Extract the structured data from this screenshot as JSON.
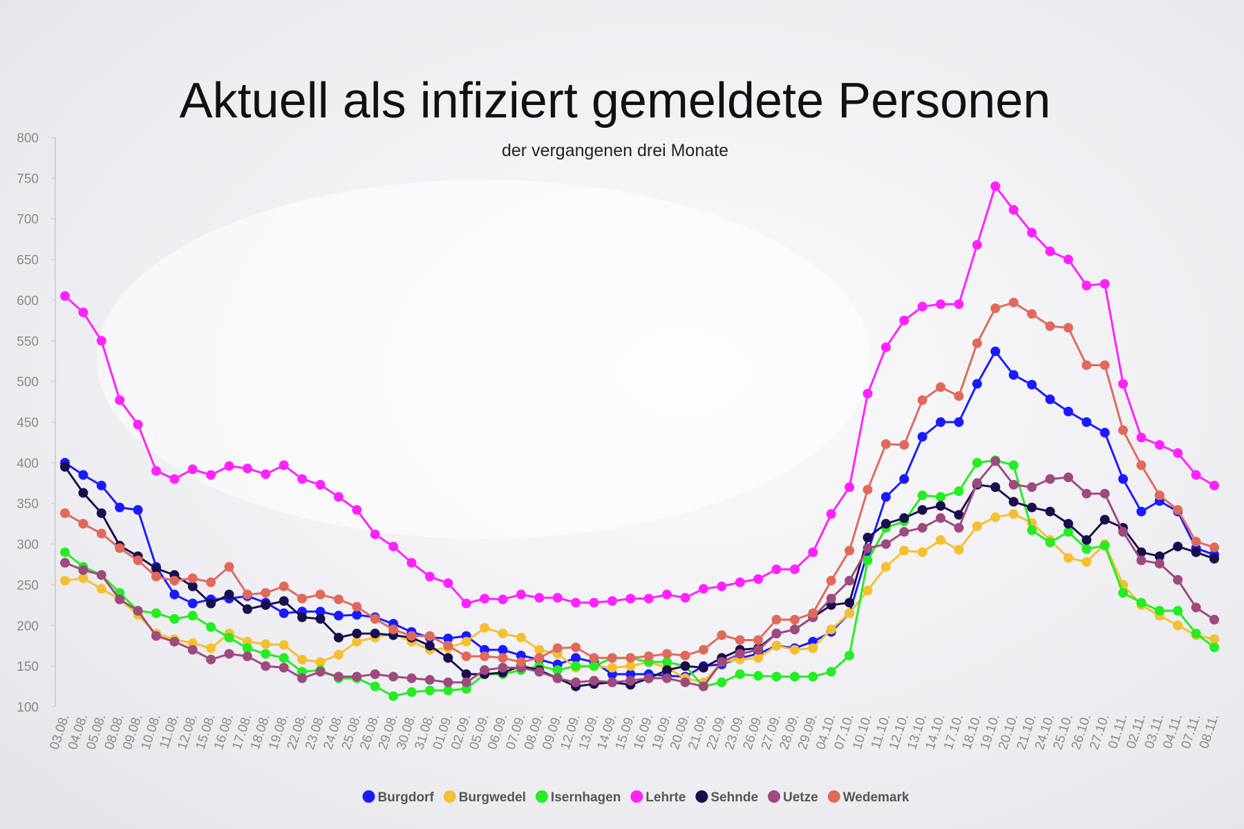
{
  "chart_data": {
    "type": "line",
    "title": "Aktuell als infiziert gemeldete Personen",
    "subtitle": "der vergangenen drei Monate",
    "categories": [
      "03.08.",
      "04.08.",
      "05.08.",
      "08.08.",
      "09.08.",
      "10.08.",
      "11.08.",
      "12.08.",
      "15.08.",
      "16.08.",
      "17.08.",
      "18.08.",
      "19.08.",
      "22.08.",
      "23.08.",
      "24.08.",
      "25.08.",
      "26.08.",
      "29.08.",
      "30.08.",
      "31.08.",
      "01.09.",
      "02.09.",
      "05.09.",
      "06.09.",
      "07.09.",
      "08.09.",
      "09.09.",
      "12.09.",
      "13.09.",
      "14.09.",
      "15.09.",
      "16.09.",
      "19.09.",
      "20.09.",
      "21.09.",
      "22.09.",
      "23.09.",
      "26.09.",
      "27.09.",
      "28.09.",
      "29.09.",
      "04.10.",
      "07.10.",
      "10.10.",
      "11.10.",
      "12.10.",
      "13.10.",
      "14.10.",
      "17.10.",
      "18.10.",
      "19.10.",
      "20.10.",
      "21.10.",
      "24.10.",
      "25.10.",
      "26.10.",
      "27.10.",
      "01.11.",
      "02.11.",
      "03.11.",
      "04.11.",
      "07.11.",
      "08.11."
    ],
    "series": [
      {
        "name": "Burgdorf",
        "color": "#1a1aff",
        "values": [
          400,
          385,
          372,
          345,
          342,
          272,
          238,
          227,
          232,
          233,
          236,
          228,
          215,
          217,
          217,
          212,
          213,
          210,
          202,
          192,
          185,
          184,
          187,
          170,
          170,
          163,
          158,
          152,
          160,
          155,
          140,
          140,
          140,
          138,
          137,
          150,
          152,
          160,
          165,
          175,
          172,
          180,
          192,
          215,
          290,
          358,
          380,
          432,
          450,
          450,
          497,
          537,
          508,
          496,
          478,
          463,
          450,
          437,
          380,
          340,
          353,
          340,
          295,
          287
        ]
      },
      {
        "name": "Burgwedel",
        "color": "#f5c030",
        "values": [
          255,
          258,
          245,
          232,
          213,
          190,
          183,
          178,
          172,
          190,
          180,
          177,
          176,
          158,
          155,
          164,
          180,
          185,
          190,
          180,
          170,
          172,
          180,
          197,
          190,
          185,
          170,
          165,
          148,
          150,
          148,
          150,
          155,
          148,
          135,
          130,
          155,
          158,
          160,
          175,
          170,
          172,
          195,
          215,
          243,
          272,
          292,
          290,
          305,
          293,
          322,
          333,
          337,
          326,
          305,
          283,
          278,
          300,
          250,
          225,
          212,
          200,
          188,
          183
        ]
      },
      {
        "name": "Isernhagen",
        "color": "#22ee22",
        "values": [
          290,
          272,
          262,
          240,
          218,
          215,
          208,
          212,
          198,
          185,
          172,
          165,
          160,
          143,
          145,
          135,
          135,
          125,
          113,
          118,
          120,
          120,
          122,
          140,
          140,
          145,
          150,
          145,
          150,
          150,
          160,
          160,
          155,
          155,
          150,
          125,
          130,
          140,
          138,
          137,
          137,
          137,
          143,
          163,
          280,
          320,
          328,
          360,
          358,
          365,
          400,
          403,
          397,
          317,
          302,
          315,
          294,
          298,
          240,
          228,
          218,
          218,
          190,
          173
        ]
      },
      {
        "name": "Lehrte",
        "color": "#ff22ff",
        "values": [
          605,
          585,
          550,
          477,
          447,
          390,
          380,
          392,
          385,
          396,
          393,
          386,
          397,
          380,
          373,
          358,
          342,
          312,
          297,
          277,
          260,
          252,
          227,
          233,
          232,
          238,
          234,
          234,
          228,
          228,
          230,
          233,
          233,
          238,
          234,
          245,
          248,
          253,
          257,
          269,
          269,
          290,
          337,
          370,
          485,
          542,
          575,
          592,
          595,
          595,
          668,
          740,
          711,
          683,
          660,
          650,
          618,
          620,
          497,
          431,
          422,
          412,
          385,
          372
        ]
      },
      {
        "name": "Sehnde",
        "color": "#1a0f4d",
        "values": [
          395,
          363,
          338,
          298,
          285,
          270,
          262,
          248,
          227,
          238,
          220,
          225,
          230,
          210,
          208,
          185,
          190,
          190,
          188,
          185,
          175,
          160,
          140,
          140,
          142,
          150,
          145,
          135,
          125,
          128,
          130,
          127,
          135,
          145,
          150,
          148,
          160,
          170,
          172,
          190,
          195,
          210,
          225,
          228,
          308,
          325,
          332,
          342,
          347,
          336,
          373,
          370,
          352,
          345,
          340,
          325,
          305,
          330,
          320,
          290,
          285,
          297,
          290,
          282
        ]
      },
      {
        "name": "Uetze",
        "color": "#9e4a7e",
        "values": [
          277,
          268,
          262,
          232,
          218,
          187,
          180,
          170,
          158,
          165,
          162,
          150,
          148,
          135,
          143,
          137,
          137,
          140,
          137,
          135,
          133,
          130,
          130,
          145,
          148,
          148,
          143,
          135,
          130,
          132,
          130,
          132,
          135,
          135,
          130,
          125,
          155,
          165,
          170,
          190,
          195,
          210,
          233,
          255,
          295,
          300,
          315,
          320,
          332,
          320,
          375,
          402,
          373,
          370,
          380,
          382,
          362,
          362,
          315,
          280,
          276,
          256,
          222,
          207
        ]
      },
      {
        "name": "Wedemark",
        "color": "#e06a5a",
        "values": [
          338,
          325,
          313,
          295,
          280,
          260,
          255,
          258,
          253,
          272,
          238,
          240,
          248,
          233,
          238,
          232,
          223,
          208,
          195,
          187,
          187,
          175,
          162,
          162,
          160,
          155,
          160,
          172,
          173,
          160,
          160,
          160,
          162,
          165,
          163,
          170,
          188,
          182,
          182,
          207,
          207,
          215,
          255,
          292,
          367,
          423,
          422,
          477,
          493,
          482,
          547,
          590,
          597,
          583,
          568,
          566,
          520,
          520,
          440,
          397,
          360,
          342,
          303,
          296
        ]
      }
    ],
    "ylim": [
      100,
      800
    ],
    "yticks": [
      100,
      150,
      200,
      250,
      300,
      350,
      400,
      450,
      500,
      550,
      600,
      650,
      700,
      750,
      800
    ],
    "grid": false
  }
}
